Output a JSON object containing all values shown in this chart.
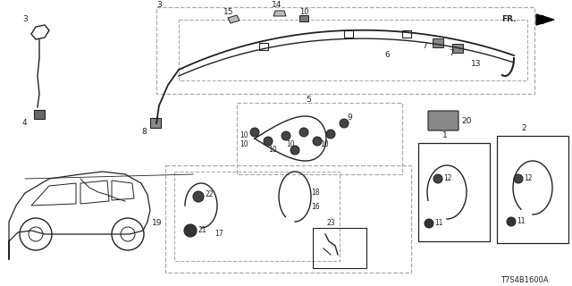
{
  "bg_color": "#ffffff",
  "lc": "#222222",
  "dc": "#aaaaaa",
  "diagram_code": "T7S4B1600A",
  "figsize": [
    6.4,
    3.2
  ],
  "dpi": 100
}
